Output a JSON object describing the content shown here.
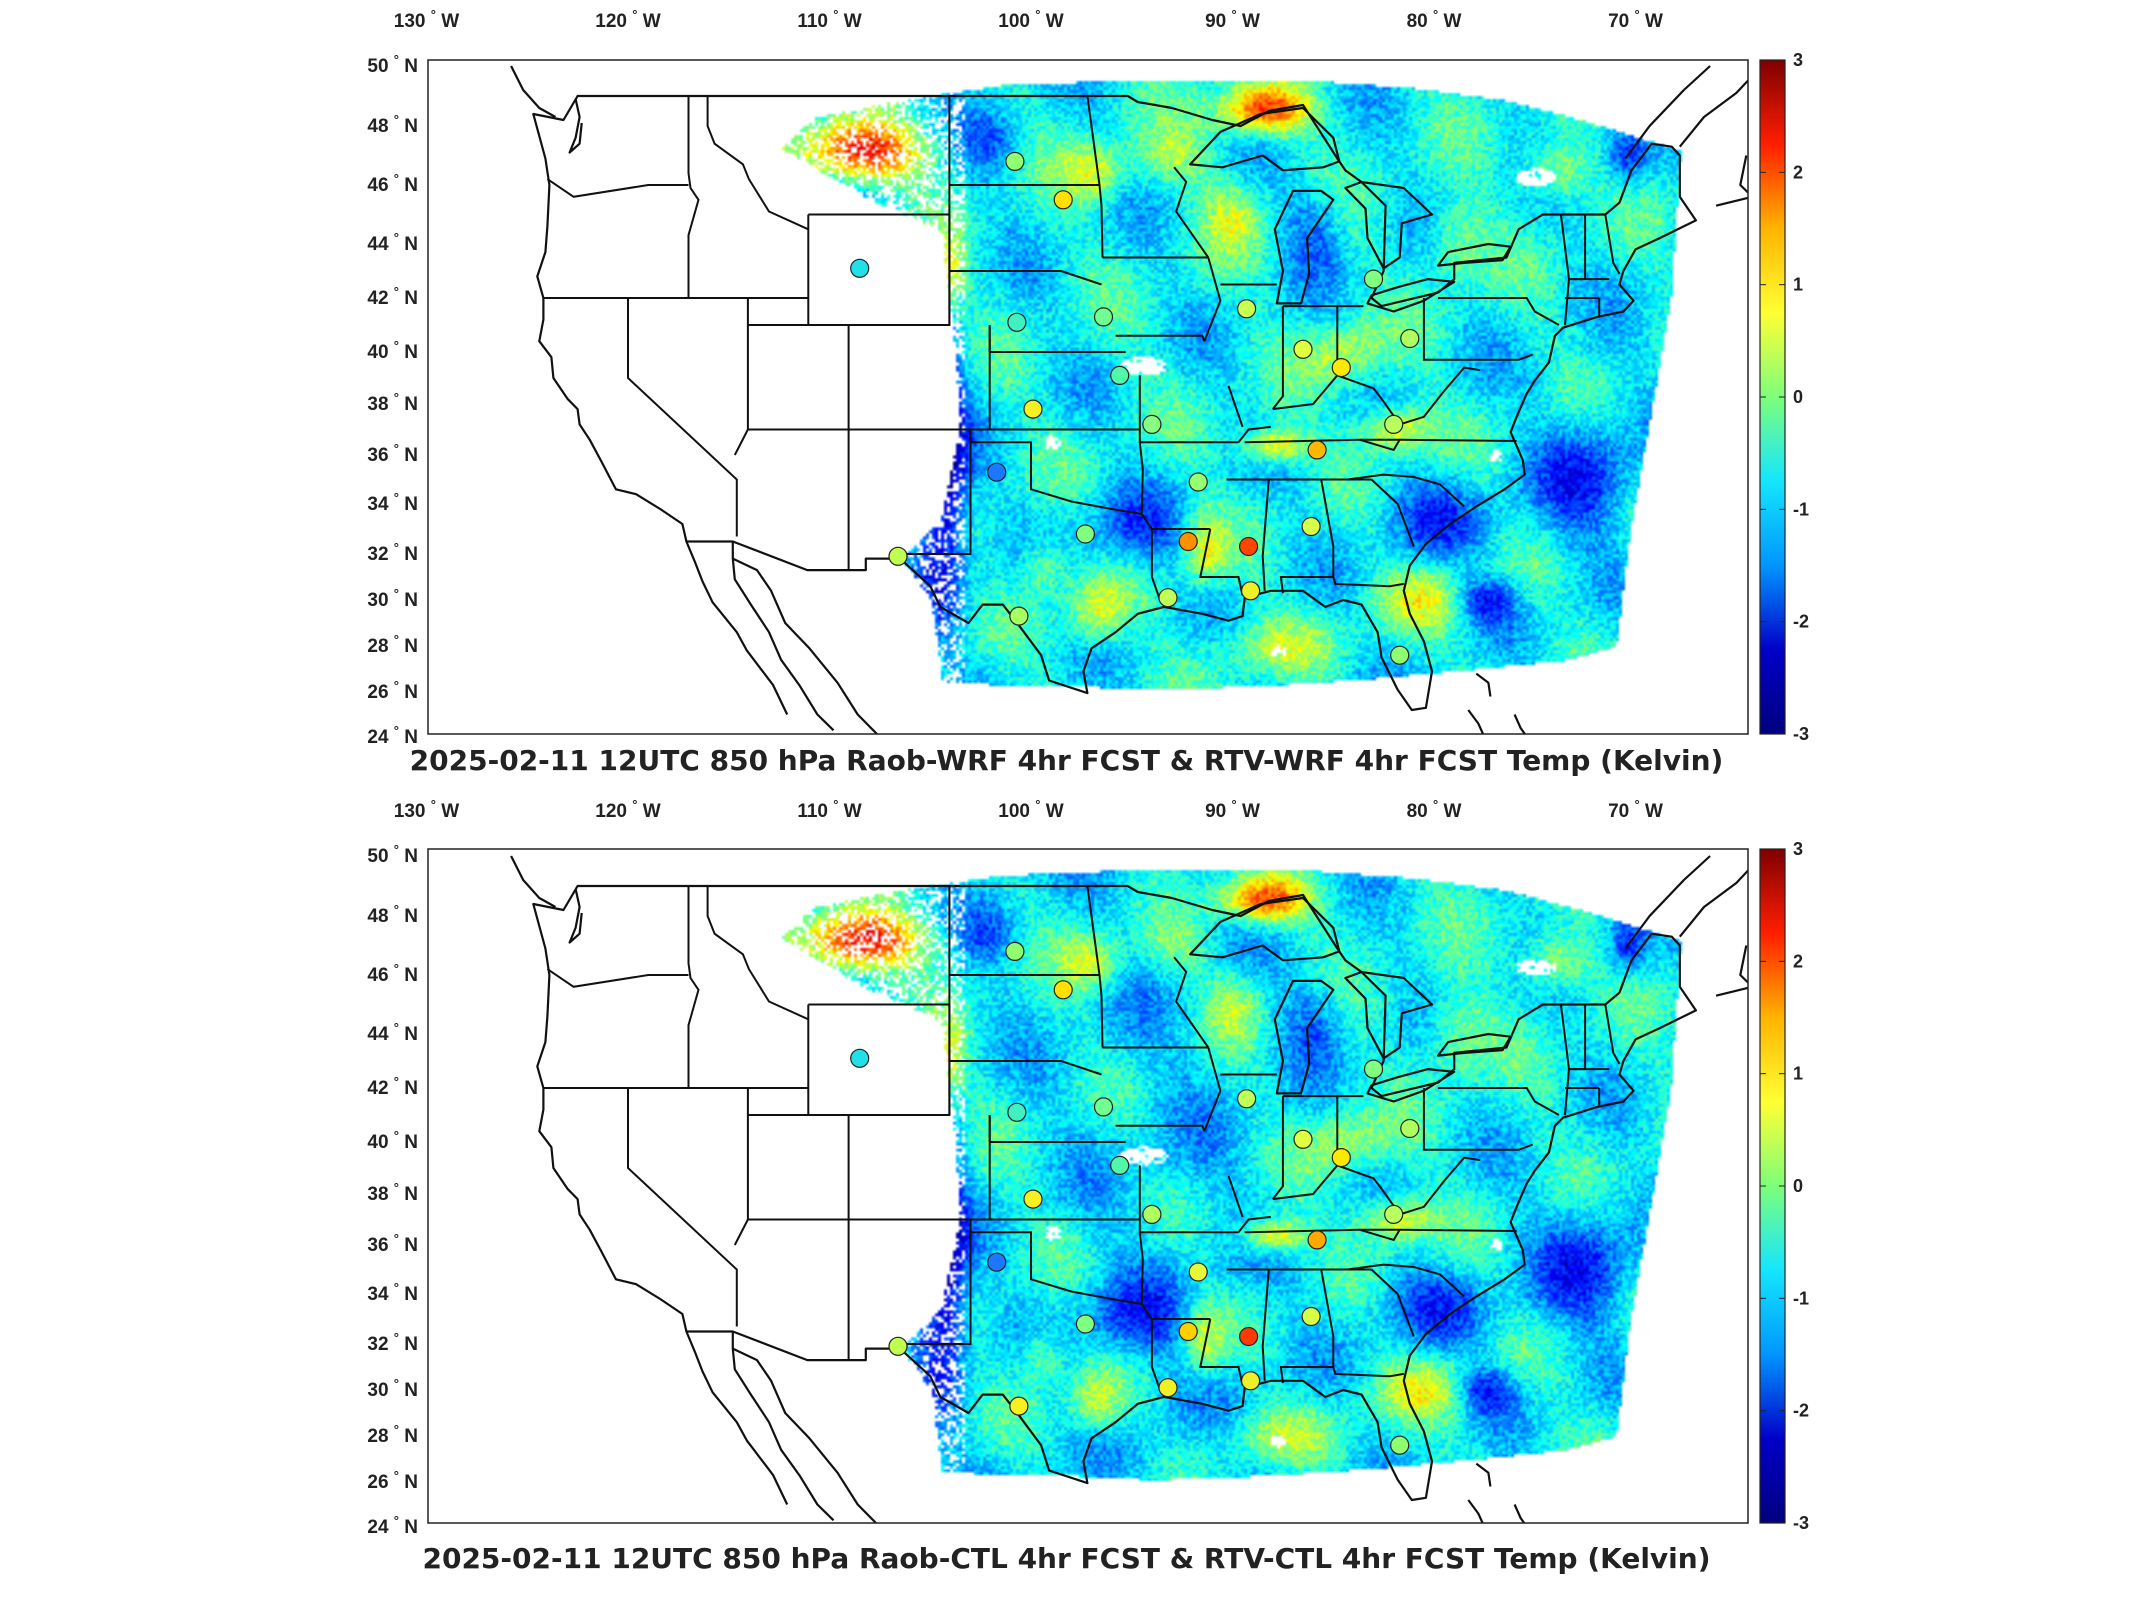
{
  "colorbar": {
    "ticks": [
      "3",
      "2",
      "1",
      "0",
      "-1",
      "-2",
      "-3"
    ],
    "colors": [
      "#7f0000",
      "#ff1e00",
      "#ffb400",
      "#ffff33",
      "#7dff7a",
      "#14e6ff",
      "#0096ff",
      "#0000c8",
      "#00007f"
    ]
  },
  "axes": {
    "lon_labels": [
      {
        "deg": "130",
        "hemi": "W",
        "lon": -130
      },
      {
        "deg": "120",
        "hemi": "W",
        "lon": -120
      },
      {
        "deg": "110",
        "hemi": "W",
        "lon": -110
      },
      {
        "deg": "100",
        "hemi": "W",
        "lon": -100
      },
      {
        "deg": "90",
        "hemi": "W",
        "lon": -90
      },
      {
        "deg": "80",
        "hemi": "W",
        "lon": -80
      },
      {
        "deg": "70",
        "hemi": "W",
        "lon": -70
      }
    ],
    "lat_labels": [
      {
        "deg": "50",
        "hemi": "N",
        "lat": 50
      },
      {
        "deg": "48",
        "hemi": "N",
        "lat": 48
      },
      {
        "deg": "46",
        "hemi": "N",
        "lat": 46
      },
      {
        "deg": "44",
        "hemi": "N",
        "lat": 44
      },
      {
        "deg": "42",
        "hemi": "N",
        "lat": 42
      },
      {
        "deg": "40",
        "hemi": "N",
        "lat": 40
      },
      {
        "deg": "38",
        "hemi": "N",
        "lat": 38
      },
      {
        "deg": "36",
        "hemi": "N",
        "lat": 36
      },
      {
        "deg": "34",
        "hemi": "N",
        "lat": 34
      },
      {
        "deg": "32",
        "hemi": "N",
        "lat": 32
      },
      {
        "deg": "30",
        "hemi": "N",
        "lat": 30
      },
      {
        "deg": "28",
        "hemi": "N",
        "lat": 28
      },
      {
        "deg": "26",
        "hemi": "N",
        "lat": 26
      },
      {
        "deg": "24",
        "hemi": "N",
        "lat": 24
      }
    ]
  },
  "panels": [
    {
      "title": "2025-02-11 12UTC 850 hPa Raob-WRF 4hr FCST & RTV-WRF 4hr FCST Temp (Kelvin)",
      "stations": [
        {
          "lon": -108.5,
          "lat": 43.1,
          "value": -0.6,
          "color": "#22e0e8"
        },
        {
          "lon": -100.8,
          "lat": 46.8,
          "value": 0.1,
          "color": "#90ff70"
        },
        {
          "lon": -98.4,
          "lat": 45.5,
          "value": 0.9,
          "color": "#ffe000"
        },
        {
          "lon": -100.7,
          "lat": 41.1,
          "value": -0.4,
          "color": "#40f0c0"
        },
        {
          "lon": -96.4,
          "lat": 41.3,
          "value": -0.1,
          "color": "#70ff90"
        },
        {
          "lon": -89.3,
          "lat": 41.6,
          "value": 0.5,
          "color": "#c8ff50"
        },
        {
          "lon": -86.5,
          "lat": 40.1,
          "value": 0.6,
          "color": "#e0ff40"
        },
        {
          "lon": -83.0,
          "lat": 42.7,
          "value": 0.0,
          "color": "#80ff80"
        },
        {
          "lon": -81.2,
          "lat": 40.5,
          "value": 0.3,
          "color": "#b0ff60"
        },
        {
          "lon": -95.6,
          "lat": 39.1,
          "value": -0.2,
          "color": "#50f8a8"
        },
        {
          "lon": -99.9,
          "lat": 37.8,
          "value": 0.8,
          "color": "#f8f020"
        },
        {
          "lon": -84.6,
          "lat": 39.4,
          "value": 0.9,
          "color": "#ffe800"
        },
        {
          "lon": -94.0,
          "lat": 37.2,
          "value": 0.0,
          "color": "#88ff80"
        },
        {
          "lon": -85.8,
          "lat": 36.2,
          "value": 1.2,
          "color": "#ffb800"
        },
        {
          "lon": -82.0,
          "lat": 37.2,
          "value": 0.3,
          "color": "#b8ff60"
        },
        {
          "lon": -101.7,
          "lat": 35.3,
          "value": -1.6,
          "color": "#1e78ff"
        },
        {
          "lon": -91.7,
          "lat": 34.9,
          "value": 0.1,
          "color": "#98ff70"
        },
        {
          "lon": -97.3,
          "lat": 32.8,
          "value": 0.0,
          "color": "#80ff80"
        },
        {
          "lon": -92.2,
          "lat": 32.5,
          "value": 1.4,
          "color": "#ff9000"
        },
        {
          "lon": -89.2,
          "lat": 32.3,
          "value": 2.1,
          "color": "#ff4500"
        },
        {
          "lon": -86.1,
          "lat": 33.1,
          "value": 0.6,
          "color": "#d8ff48"
        },
        {
          "lon": -106.6,
          "lat": 31.9,
          "value": 0.5,
          "color": "#c0ff50"
        },
        {
          "lon": -93.2,
          "lat": 30.1,
          "value": 0.4,
          "color": "#c0ff58"
        },
        {
          "lon": -89.1,
          "lat": 30.4,
          "value": 0.8,
          "color": "#f0f028"
        },
        {
          "lon": -100.6,
          "lat": 29.3,
          "value": 0.2,
          "color": "#a8ff60"
        },
        {
          "lon": -81.7,
          "lat": 27.6,
          "value": 0.1,
          "color": "#90ff70"
        }
      ]
    },
    {
      "title": "2025-02-11 12UTC 850 hPa Raob-CTL 4hr FCST & RTV-CTL 4hr FCST Temp (Kelvin)",
      "stations": [
        {
          "lon": -108.5,
          "lat": 43.1,
          "value": -0.6,
          "color": "#22e0e8"
        },
        {
          "lon": -100.8,
          "lat": 46.8,
          "value": 0.1,
          "color": "#90ff70"
        },
        {
          "lon": -98.4,
          "lat": 45.5,
          "value": 0.9,
          "color": "#ffe000"
        },
        {
          "lon": -100.7,
          "lat": 41.1,
          "value": -0.4,
          "color": "#40f0c0"
        },
        {
          "lon": -96.4,
          "lat": 41.3,
          "value": -0.1,
          "color": "#70ff90"
        },
        {
          "lon": -89.3,
          "lat": 41.6,
          "value": 0.4,
          "color": "#c0ff58"
        },
        {
          "lon": -86.5,
          "lat": 40.1,
          "value": 0.6,
          "color": "#e0ff40"
        },
        {
          "lon": -83.0,
          "lat": 42.7,
          "value": 0.0,
          "color": "#80ff80"
        },
        {
          "lon": -81.2,
          "lat": 40.5,
          "value": 0.3,
          "color": "#b0ff60"
        },
        {
          "lon": -95.6,
          "lat": 39.1,
          "value": -0.2,
          "color": "#50f8a8"
        },
        {
          "lon": -99.9,
          "lat": 37.8,
          "value": 0.8,
          "color": "#f8f020"
        },
        {
          "lon": -84.6,
          "lat": 39.4,
          "value": 0.9,
          "color": "#ffe800"
        },
        {
          "lon": -94.0,
          "lat": 37.2,
          "value": 0.3,
          "color": "#b0ff60"
        },
        {
          "lon": -85.8,
          "lat": 36.2,
          "value": 1.3,
          "color": "#ffa800"
        },
        {
          "lon": -82.0,
          "lat": 37.2,
          "value": 0.3,
          "color": "#b8ff60"
        },
        {
          "lon": -101.7,
          "lat": 35.3,
          "value": -1.6,
          "color": "#1e78ff"
        },
        {
          "lon": -91.7,
          "lat": 34.9,
          "value": 0.7,
          "color": "#e8f838"
        },
        {
          "lon": -97.3,
          "lat": 32.8,
          "value": 0.0,
          "color": "#80ff80"
        },
        {
          "lon": -92.2,
          "lat": 32.5,
          "value": 1.0,
          "color": "#ffd000"
        },
        {
          "lon": -89.2,
          "lat": 32.3,
          "value": 2.2,
          "color": "#ff3a00"
        },
        {
          "lon": -86.1,
          "lat": 33.1,
          "value": 0.6,
          "color": "#d8ff48"
        },
        {
          "lon": -106.6,
          "lat": 31.9,
          "value": 0.5,
          "color": "#c0ff50"
        },
        {
          "lon": -93.2,
          "lat": 30.1,
          "value": 0.8,
          "color": "#f0f028"
        },
        {
          "lon": -89.1,
          "lat": 30.4,
          "value": 0.8,
          "color": "#f0f028"
        },
        {
          "lon": -100.6,
          "lat": 29.3,
          "value": 0.8,
          "color": "#f8f020"
        },
        {
          "lon": -81.7,
          "lat": 27.6,
          "value": 0.1,
          "color": "#90ff70"
        }
      ]
    }
  ]
}
